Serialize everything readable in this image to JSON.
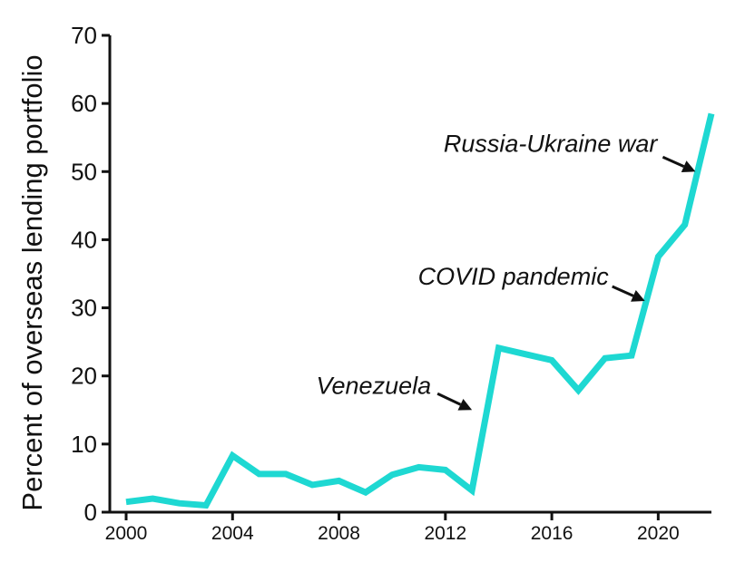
{
  "colors": {
    "line": "#1ed8d2",
    "axis": "#111111",
    "background": "#ffffff"
  },
  "chart_data": {
    "type": "line",
    "title": "",
    "xlabel": "",
    "ylabel": "Percent of overseas lending portfolio",
    "xlim": [
      2000,
      2022
    ],
    "ylim": [
      0,
      70
    ],
    "grid": false,
    "legend": "none",
    "x_ticks": [
      2000,
      2004,
      2008,
      2012,
      2016,
      2020
    ],
    "y_ticks": [
      0,
      10,
      20,
      30,
      40,
      50,
      60,
      70
    ],
    "x": [
      2000,
      2001,
      2002,
      2003,
      2004,
      2005,
      2006,
      2007,
      2008,
      2009,
      2010,
      2011,
      2012,
      2013,
      2014,
      2015,
      2016,
      2017,
      2018,
      2019,
      2020,
      2021,
      2022
    ],
    "series": [
      {
        "values": [
          1.5,
          2.0,
          1.3,
          1.0,
          8.3,
          5.6,
          5.6,
          4.0,
          4.6,
          2.9,
          5.5,
          6.6,
          6.2,
          3.2,
          24.1,
          23.2,
          22.3,
          17.9,
          22.6,
          23.0,
          37.5,
          42.2,
          58.5
        ]
      }
    ],
    "annotations": [
      {
        "text": "Venezuela",
        "x": 2013,
        "y": 15
      },
      {
        "text": "COVID pandemic",
        "x": 2019.5,
        "y": 31
      },
      {
        "text": "Russia-Ukraine war",
        "x": 2021.4,
        "y": 50
      }
    ]
  }
}
